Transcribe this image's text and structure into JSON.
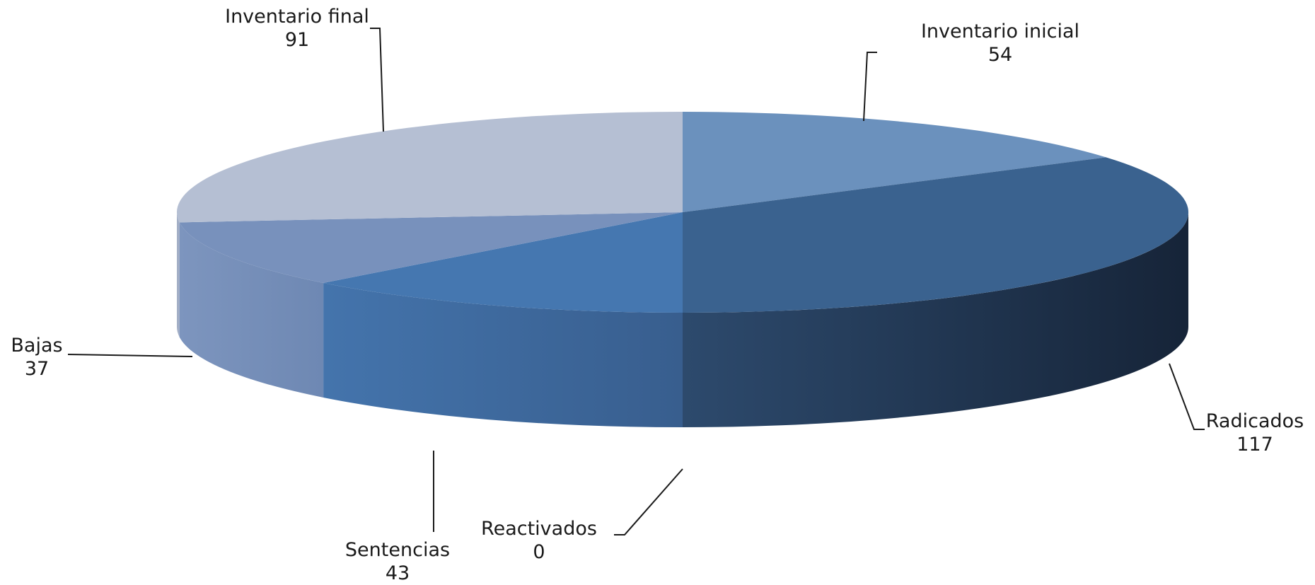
{
  "chart_data": {
    "type": "pie",
    "style": "3d",
    "categories": [
      "Inventario inicial",
      "Radicados",
      "Reactivados",
      "Sentencias",
      "Bajas",
      "Inventario final"
    ],
    "values": [
      54,
      117,
      0,
      43,
      37,
      91
    ],
    "colors": [
      "#6b91bd",
      "#3a628f",
      "#3a628f",
      "#4577b0",
      "#7891bc",
      "#b5bfd3"
    ],
    "title": "",
    "legend": "none",
    "data_labels": "category and value, outside with leader lines"
  }
}
